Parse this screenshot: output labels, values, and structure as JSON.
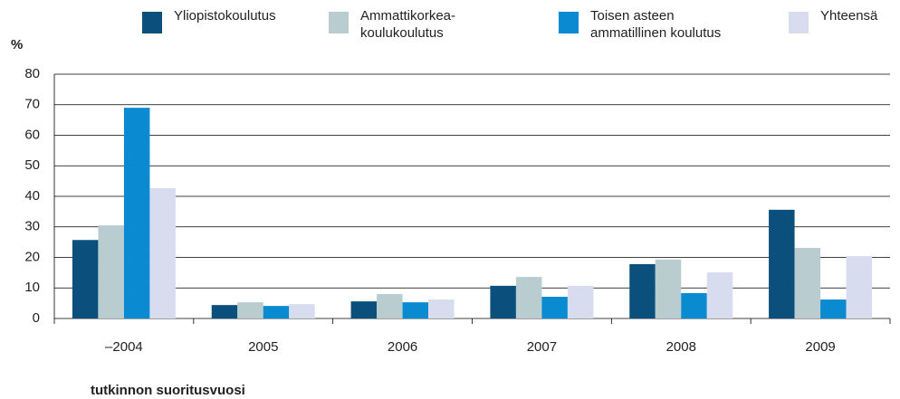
{
  "chart_data": {
    "type": "bar",
    "y_label": "%",
    "x_label": "tutkinnon suoritusvuosi",
    "categories": [
      "–2004",
      "2005",
      "2006",
      "2007",
      "2008",
      "2009"
    ],
    "series": [
      {
        "name": "Yliopistokoulutus",
        "color": "#0b4f7c",
        "values": [
          25.7,
          4.4,
          5.6,
          10.7,
          17.8,
          35.6
        ]
      },
      {
        "name": "Ammattikorkea-\nkoulukoulutus",
        "color": "#b9cdd1",
        "values": [
          30.5,
          5.3,
          8,
          13.6,
          19.3,
          23.1
        ]
      },
      {
        "name": "Toisen asteen\nammatillinen koulutus",
        "color": "#0a8ad0",
        "values": [
          69,
          4.1,
          5.3,
          7.1,
          8.3,
          6.2
        ]
      },
      {
        "name": "Yhteensä",
        "color": "#d8dcef",
        "values": [
          42.7,
          4.7,
          6.2,
          10.7,
          15.1,
          20.4
        ]
      }
    ],
    "ylim": [
      0,
      80
    ],
    "yticks": [
      0,
      10,
      20,
      30,
      40,
      50,
      60,
      70,
      80
    ],
    "grid": true
  }
}
